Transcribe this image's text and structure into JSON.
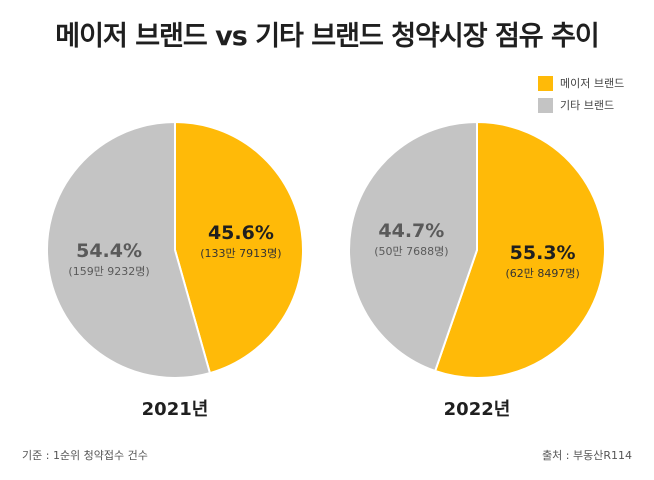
{
  "title": "메이저 브랜드 vs 기타 브랜드 청약시장 점유 추이",
  "legend": [
    {
      "label": "메이저 브랜드",
      "color": "#FFBA08"
    },
    {
      "label": "기타 브랜드",
      "color": "#C4C4C4"
    }
  ],
  "footnote_left": "기준 : 1순위 청약접수 건수",
  "footnote_right": "출처 : 부동산R114",
  "chart_data": [
    {
      "type": "pie",
      "title": "2021년",
      "slices": [
        {
          "name": "메이저 브랜드",
          "value": 45.6,
          "pct_label": "45.6%",
          "count_label": "(133만 7913명)",
          "color": "#FFBA08"
        },
        {
          "name": "기타 브랜드",
          "value": 54.4,
          "pct_label": "54.4%",
          "count_label": "(159만 9232명)",
          "color": "#C4C4C4"
        }
      ]
    },
    {
      "type": "pie",
      "title": "2022년",
      "slices": [
        {
          "name": "메이저 브랜드",
          "value": 55.3,
          "pct_label": "55.3%",
          "count_label": "(62만 8497명)",
          "color": "#FFBA08"
        },
        {
          "name": "기타 브랜드",
          "value": 44.7,
          "pct_label": "44.7%",
          "count_label": "(50만 7688명)",
          "color": "#C4C4C4"
        }
      ]
    }
  ]
}
